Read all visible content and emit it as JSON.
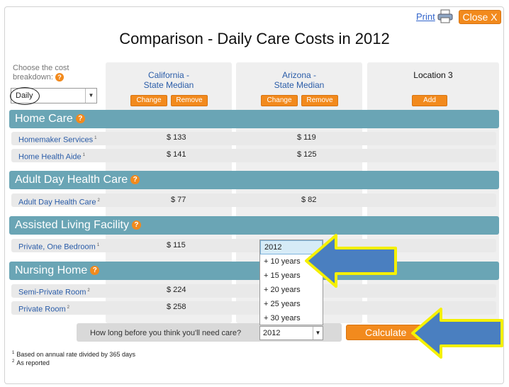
{
  "header": {
    "print_label": "Print",
    "close_label": "Close X",
    "title": "Comparison - Daily Care Costs in 2012"
  },
  "breakdown": {
    "label": "Choose the cost breakdown:",
    "selected": "Daily"
  },
  "locations": [
    {
      "line1": "California -",
      "line2": "State Median",
      "change": "Change",
      "remove": "Remove"
    },
    {
      "line1": "Arizona -",
      "line2": "State Median",
      "change": "Change",
      "remove": "Remove"
    },
    {
      "line1": "Location 3",
      "add": "Add"
    }
  ],
  "sections": {
    "home_care": {
      "title": "Home Care",
      "rows": [
        {
          "label": "Homemaker Services",
          "note": "1",
          "ca": "$ 133",
          "az": "$ 119"
        },
        {
          "label": "Home Health Aide",
          "note": "1",
          "ca": "$ 141",
          "az": "$ 125"
        }
      ]
    },
    "adult_day": {
      "title": "Adult Day Health Care",
      "rows": [
        {
          "label": "Adult Day Health Care",
          "note": "2",
          "ca": "$ 77",
          "az": "$ 82"
        }
      ]
    },
    "assisted": {
      "title": "Assisted Living Facility",
      "rows": [
        {
          "label": "Private, One Bedroom",
          "note": "1",
          "ca": "$ 115",
          "az": ""
        }
      ]
    },
    "nursing": {
      "title": "Nursing Home",
      "rows": [
        {
          "label": "Semi-Private Room",
          "note": "2",
          "ca": "$ 224",
          "az": ""
        },
        {
          "label": "Private Room",
          "note": "2",
          "ca": "$ 258",
          "az": ""
        }
      ]
    }
  },
  "question": {
    "text": "How long before you think you'll need care?",
    "selected": "2012",
    "options": [
      "2012",
      "+ 10 years",
      "+ 15 years",
      "+ 20 years",
      "+ 25 years",
      "+ 30 years"
    ]
  },
  "calculate_label": "Calculate",
  "footnotes": [
    {
      "mark": "1",
      "text": "Based on annual rate divided by 365 days"
    },
    {
      "mark": "2",
      "text": "As reported"
    }
  ],
  "colors": {
    "accent_orange": "#f28a1d",
    "section_teal": "#6aa5b5",
    "link_blue": "#2a5ca8",
    "arrow_blue": "#4a7fc0",
    "arrow_outline": "#f5f000"
  }
}
